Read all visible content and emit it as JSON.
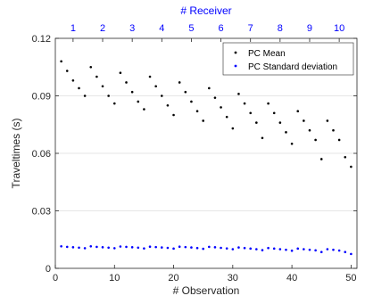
{
  "chart_data": {
    "type": "scatter",
    "xlabel": "# Observation",
    "ylabel": "Traveltimes (s)",
    "top_axis_label": "# Receiver",
    "xlim": [
      0,
      51
    ],
    "ylim": [
      0,
      0.12
    ],
    "x_ticks": [
      0,
      10,
      20,
      30,
      40,
      50
    ],
    "y_ticks": [
      0,
      0.03,
      0.06,
      0.09,
      0.12
    ],
    "y_tick_labels": [
      "0",
      "0.03",
      "0.06",
      "0.09",
      "0.12"
    ],
    "top_ticks": [
      3,
      8,
      13,
      18,
      23,
      28,
      33,
      38,
      43,
      48
    ],
    "top_tick_labels": [
      "1",
      "2",
      "3",
      "4",
      "5",
      "6",
      "7",
      "8",
      "9",
      "10"
    ],
    "grid": "horizontal",
    "legend_position": "top-right",
    "series": [
      {
        "name": "PC Mean",
        "color": "#000000",
        "x": [
          1,
          2,
          3,
          4,
          5,
          6,
          7,
          8,
          9,
          10,
          11,
          12,
          13,
          14,
          15,
          16,
          17,
          18,
          19,
          20,
          21,
          22,
          23,
          24,
          25,
          26,
          27,
          28,
          29,
          30,
          31,
          32,
          33,
          34,
          35,
          36,
          37,
          38,
          39,
          40,
          41,
          42,
          43,
          44,
          45,
          46,
          47,
          48,
          49,
          50
        ],
        "y": [
          0.108,
          0.103,
          0.098,
          0.094,
          0.09,
          0.105,
          0.1,
          0.095,
          0.09,
          0.086,
          0.102,
          0.097,
          0.092,
          0.087,
          0.083,
          0.1,
          0.095,
          0.09,
          0.085,
          0.08,
          0.097,
          0.092,
          0.087,
          0.082,
          0.077,
          0.094,
          0.089,
          0.084,
          0.079,
          0.073,
          0.091,
          0.086,
          0.081,
          0.076,
          0.068,
          0.086,
          0.081,
          0.076,
          0.071,
          0.065,
          0.082,
          0.077,
          0.072,
          0.067,
          0.057,
          0.077,
          0.072,
          0.067,
          0.058,
          0.053
        ]
      },
      {
        "name": "PC Standard deviation",
        "color": "#0000ff",
        "x": [
          1,
          2,
          3,
          4,
          5,
          6,
          7,
          8,
          9,
          10,
          11,
          12,
          13,
          14,
          15,
          16,
          17,
          18,
          19,
          20,
          21,
          22,
          23,
          24,
          25,
          26,
          27,
          28,
          29,
          30,
          31,
          32,
          33,
          34,
          35,
          36,
          37,
          38,
          39,
          40,
          41,
          42,
          43,
          44,
          45,
          46,
          47,
          48,
          49,
          50
        ],
        "y": [
          0.0115,
          0.0112,
          0.011,
          0.0108,
          0.0105,
          0.0115,
          0.0112,
          0.011,
          0.0108,
          0.0105,
          0.0114,
          0.0112,
          0.011,
          0.0108,
          0.0104,
          0.0113,
          0.0111,
          0.0109,
          0.0107,
          0.0103,
          0.0113,
          0.0111,
          0.0109,
          0.0106,
          0.0102,
          0.0112,
          0.011,
          0.0107,
          0.0104,
          0.01,
          0.0109,
          0.0106,
          0.0103,
          0.01,
          0.0095,
          0.0106,
          0.0103,
          0.01,
          0.0097,
          0.0092,
          0.0103,
          0.01,
          0.0097,
          0.0094,
          0.0085,
          0.01,
          0.0097,
          0.0093,
          0.0085,
          0.0075
        ]
      }
    ]
  }
}
